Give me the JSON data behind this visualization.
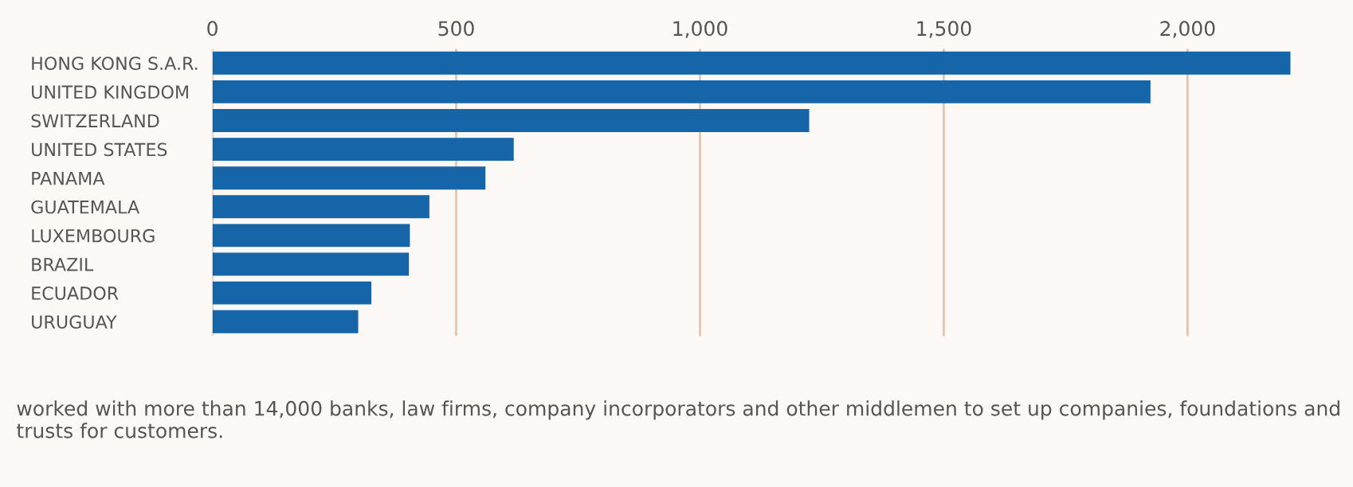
{
  "chart_data": {
    "type": "bar",
    "orientation": "horizontal",
    "categories": [
      "HONG KONG S.A.R.",
      "UNITED KINGDOM",
      "SWITZERLAND",
      "UNITED STATES",
      "PANAMA",
      "GUATEMALA",
      "LUXEMBOURG",
      "BRAZIL",
      "ECUADOR",
      "URUGUAY"
    ],
    "values": [
      2211,
      1924,
      1224,
      618,
      560,
      445,
      405,
      403,
      326,
      299
    ],
    "color": "#1565a8",
    "xlim": [
      0,
      2220
    ],
    "xticks": [
      {
        "value": 0,
        "label": "0"
      },
      {
        "value": 500,
        "label": "500"
      },
      {
        "value": 1000,
        "label": "1,000"
      },
      {
        "value": 1500,
        "label": "1,500"
      },
      {
        "value": 2000,
        "label": "2,000"
      }
    ],
    "grid": "x",
    "legend": false,
    "annotations": [
      "worked with more than 14,000 banks, law firms, company incorporators and other middlemen to set up companies, foundations and trusts for customers."
    ]
  }
}
